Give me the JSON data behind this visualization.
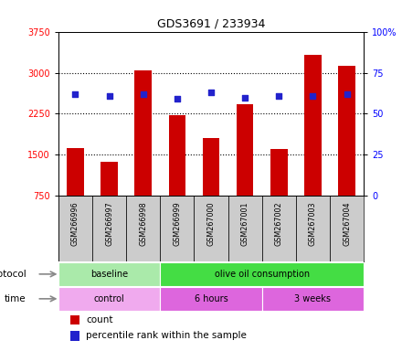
{
  "title": "GDS3691 / 233934",
  "samples": [
    "GSM266996",
    "GSM266997",
    "GSM266998",
    "GSM266999",
    "GSM267000",
    "GSM267001",
    "GSM267002",
    "GSM267003",
    "GSM267004"
  ],
  "bar_values": [
    1620,
    1380,
    3050,
    2230,
    1800,
    2430,
    1600,
    3330,
    3120
  ],
  "bar_bottom": 750,
  "percentile_values": [
    62,
    61,
    62,
    59,
    63,
    60,
    61,
    61,
    62
  ],
  "left_ylim": [
    750,
    3750
  ],
  "left_yticks": [
    750,
    1500,
    2250,
    3000,
    3750
  ],
  "right_yticks": [
    0,
    25,
    50,
    75,
    100
  ],
  "bar_color": "#cc0000",
  "dot_color": "#2222cc",
  "protocol_groups": [
    {
      "label": "baseline",
      "start": 0,
      "end": 3,
      "color": "#aaeaaa"
    },
    {
      "label": "olive oil consumption",
      "start": 3,
      "end": 9,
      "color": "#44dd44"
    }
  ],
  "time_groups": [
    {
      "label": "control",
      "start": 0,
      "end": 3,
      "color": "#f0aaee"
    },
    {
      "label": "6 hours",
      "start": 3,
      "end": 6,
      "color": "#dd66dd"
    },
    {
      "label": "3 weeks",
      "start": 6,
      "end": 9,
      "color": "#dd66dd"
    }
  ],
  "protocol_label": "protocol",
  "time_label": "time",
  "legend_count_label": "count",
  "legend_pct_label": "percentile rank within the sample",
  "background_color": "#ffffff",
  "plot_bg_color": "#ffffff",
  "tick_label_area_color": "#cccccc",
  "grid_color": "#000000",
  "title_fontsize": 9,
  "axis_fontsize": 7,
  "bar_width": 0.5
}
